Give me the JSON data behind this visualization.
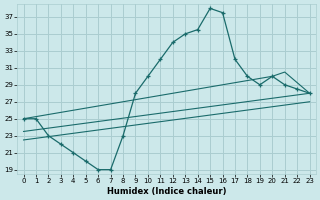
{
  "xlabel": "Humidex (Indice chaleur)",
  "bg_color": "#cce8ea",
  "grid_color": "#aacdd0",
  "line_color": "#1a6b6b",
  "xlim": [
    -0.5,
    23.5
  ],
  "ylim": [
    18.5,
    38.5
  ],
  "yticks": [
    19,
    21,
    23,
    25,
    27,
    29,
    31,
    33,
    35,
    37
  ],
  "xticks": [
    0,
    1,
    2,
    3,
    4,
    5,
    6,
    7,
    8,
    9,
    10,
    11,
    12,
    13,
    14,
    15,
    16,
    17,
    18,
    19,
    20,
    21,
    22,
    23
  ],
  "line1_x": [
    0,
    1,
    2,
    3,
    4,
    5,
    6,
    7,
    8,
    9,
    10,
    11,
    12,
    13,
    14,
    15,
    16,
    17,
    18,
    19,
    20,
    21,
    22,
    23
  ],
  "line1_y": [
    25,
    25,
    23,
    22,
    21,
    20,
    19,
    19,
    23,
    28,
    30,
    32,
    34,
    35,
    35.5,
    38,
    37.5,
    32,
    30,
    29,
    30,
    29,
    28.5,
    28
  ],
  "line2_x": [
    0,
    20,
    21,
    23
  ],
  "line2_y": [
    25,
    30,
    30.5,
    28
  ],
  "line3_x": [
    0,
    23
  ],
  "line3_y": [
    23.5,
    28
  ],
  "line4_x": [
    0,
    23
  ],
  "line4_y": [
    22.5,
    27
  ]
}
